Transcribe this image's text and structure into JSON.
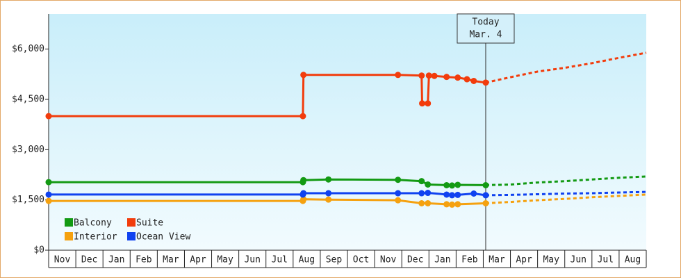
{
  "chart_data": {
    "type": "line",
    "xlim": [
      0,
      22
    ],
    "xticks": [
      {
        "value": 0,
        "label": "Nov"
      },
      {
        "value": 1,
        "label": "Dec"
      },
      {
        "value": 2,
        "label": "Jan"
      },
      {
        "value": 3,
        "label": "Feb"
      },
      {
        "value": 4,
        "label": "Mar"
      },
      {
        "value": 5,
        "label": "Apr"
      },
      {
        "value": 6,
        "label": "May"
      },
      {
        "value": 7,
        "label": "Jun"
      },
      {
        "value": 8,
        "label": "Jul"
      },
      {
        "value": 9,
        "label": "Aug"
      },
      {
        "value": 10,
        "label": "Sep"
      },
      {
        "value": 11,
        "label": "Oct"
      },
      {
        "value": 12,
        "label": "Nov"
      },
      {
        "value": 13,
        "label": "Dec"
      },
      {
        "value": 14,
        "label": "Jan"
      },
      {
        "value": 15,
        "label": "Feb"
      },
      {
        "value": 16,
        "label": "Mar"
      },
      {
        "value": 17,
        "label": "Apr"
      },
      {
        "value": 18,
        "label": "May"
      },
      {
        "value": 19,
        "label": "Jun"
      },
      {
        "value": 20,
        "label": "Jul"
      },
      {
        "value": 21,
        "label": "Aug"
      }
    ],
    "ylim": [
      0,
      7050
    ],
    "yticks": [
      {
        "value": 0,
        "label": "$0"
      },
      {
        "value": 1500,
        "label": "$1,500"
      },
      {
        "value": 3000,
        "label": "$3,000"
      },
      {
        "value": 4500,
        "label": "$4,500"
      },
      {
        "value": 6000,
        "label": "$6,000"
      }
    ],
    "annotation": {
      "x": 16.09,
      "lines": [
        "Today",
        "Mar. 4"
      ]
    },
    "series": [
      {
        "name": "Balcony",
        "color": "#139a13",
        "x": [
          0,
          9.36,
          9.38,
          10.3,
          12.86,
          13.73,
          13.96,
          14.65,
          14.85,
          15.06,
          16.09
        ],
        "values": [
          2030,
          2030,
          2090,
          2110,
          2100,
          2060,
          1960,
          1940,
          1930,
          1950,
          1940
        ],
        "forecast": {
          "x": [
            16.09,
            17,
            18,
            19,
            20,
            21,
            22
          ],
          "values": [
            1940,
            1960,
            2020,
            2060,
            2110,
            2160,
            2200
          ]
        }
      },
      {
        "name": "Suite",
        "color": "#f23c0c",
        "x": [
          0,
          9.36,
          9.38,
          12.86,
          13.73,
          13.75,
          13.96,
          14.0,
          14.2,
          14.65,
          15.06,
          15.4,
          15.65,
          16.09
        ],
        "values": [
          4000,
          4000,
          5230,
          5230,
          5210,
          4380,
          4380,
          5210,
          5200,
          5170,
          5150,
          5100,
          5050,
          5000
        ],
        "forecast": {
          "x": [
            16.09,
            17,
            18,
            19,
            20,
            21,
            22
          ],
          "values": [
            5000,
            5160,
            5330,
            5440,
            5580,
            5740,
            5890
          ]
        }
      },
      {
        "name": "Interior",
        "color": "#f5a10f",
        "x": [
          0,
          9.36,
          9.38,
          10.3,
          12.86,
          13.73,
          13.96,
          14.65,
          14.85,
          15.06,
          16.09
        ],
        "values": [
          1470,
          1470,
          1520,
          1510,
          1490,
          1400,
          1400,
          1370,
          1360,
          1370,
          1400
        ],
        "forecast": {
          "x": [
            16.09,
            17,
            18,
            19,
            20,
            21,
            22
          ],
          "values": [
            1400,
            1440,
            1490,
            1530,
            1580,
            1620,
            1660
          ]
        }
      },
      {
        "name": "Ocean View",
        "color": "#1042f0",
        "x": [
          0,
          9.36,
          9.38,
          10.3,
          12.86,
          13.73,
          13.96,
          14.65,
          14.85,
          15.06,
          15.65,
          16.09
        ],
        "values": [
          1660,
          1660,
          1700,
          1700,
          1700,
          1700,
          1710,
          1660,
          1640,
          1650,
          1690,
          1640
        ],
        "forecast": {
          "x": [
            16.09,
            17,
            18,
            19,
            20,
            21,
            22
          ],
          "values": [
            1640,
            1650,
            1670,
            1690,
            1700,
            1720,
            1740
          ]
        }
      }
    ]
  }
}
